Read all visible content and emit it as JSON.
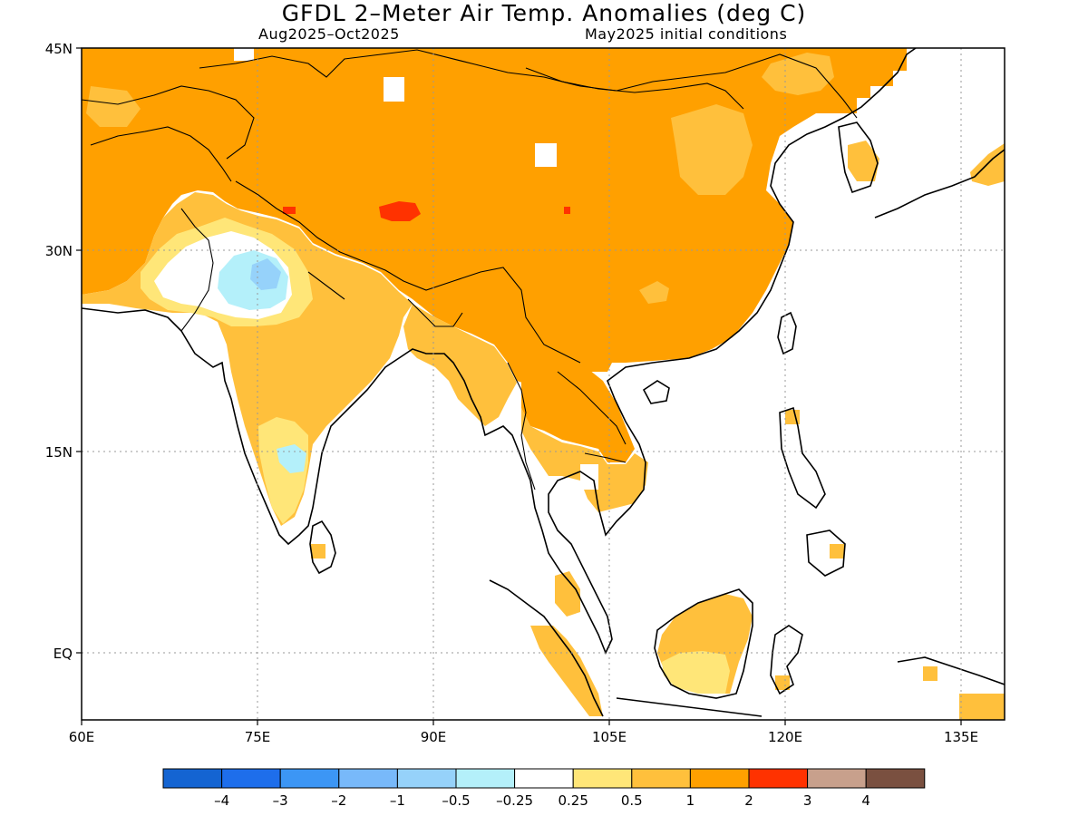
{
  "header": {
    "title": "GFDL 2–Meter Air Temp. Anomalies (deg C)",
    "period": "Aug2025–Oct2025",
    "init": "May2025 initial conditions"
  },
  "axes": {
    "lat_labels": [
      "45N",
      "30N",
      "15N",
      "EQ"
    ],
    "lon_labels": [
      "60E",
      "75E",
      "90E",
      "105E",
      "120E",
      "135E"
    ]
  },
  "legend": {
    "labels": [
      "–4",
      "–3",
      "–2",
      "–1",
      "–0.5",
      "–0.25",
      "0.25",
      "0.5",
      "1",
      "2",
      "3",
      "4"
    ],
    "colors": [
      "#1464d2",
      "#1e6eeb",
      "#3c96f5",
      "#78b9fa",
      "#96d2fa",
      "#b4f0fa",
      "#ffffff",
      "#ffe678",
      "#ffc03c",
      "#ffa000",
      "#ff3200",
      "#c8a08c",
      "#7a5040"
    ]
  },
  "colors": {
    "strong_warm": "#ffa000",
    "moderate_warm": "#ffc03c",
    "weak_warm": "#ffe678",
    "very_strong_warm": "#ff3200",
    "weak_cool": "#b4f0fa",
    "cool": "#96d2fa",
    "neutral": "#ffffff"
  }
}
